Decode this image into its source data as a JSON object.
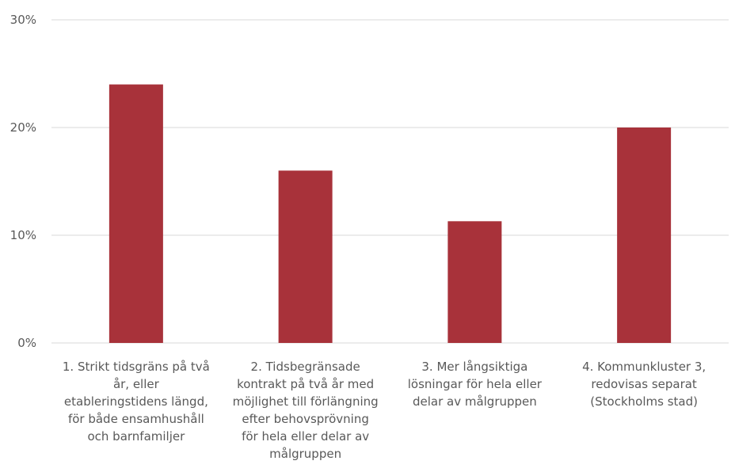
{
  "chart_data": {
    "type": "bar",
    "categories": [
      [
        "1. Strikt tidsgräns på två",
        "år, eller",
        "etableringstidens längd,",
        "för både ensamhushåll",
        "och barnfamiljer"
      ],
      [
        "2. Tidsbegränsade",
        "kontrakt på två år med",
        "möjlighet till förlängning",
        "efter behovsprövning",
        "för hela eller delar av",
        "målgruppen"
      ],
      [
        "3. Mer långsiktiga",
        "lösningar för hela eller",
        "delar av målgruppen"
      ],
      [
        "4. Kommunkluster 3,",
        "redovisas separat",
        "(Stockholms stad)"
      ]
    ],
    "values": [
      0.24,
      0.16,
      0.113,
      0.2
    ],
    "ylim": [
      0,
      0.3
    ],
    "yticks": [
      {
        "value": 0,
        "label": "0%"
      },
      {
        "value": 0.1,
        "label": "10%"
      },
      {
        "value": 0.2,
        "label": "20%"
      },
      {
        "value": 0.3,
        "label": "30%"
      }
    ],
    "bar_color": "#a8323a",
    "grid": true,
    "title": "",
    "xlabel": "",
    "ylabel": ""
  }
}
